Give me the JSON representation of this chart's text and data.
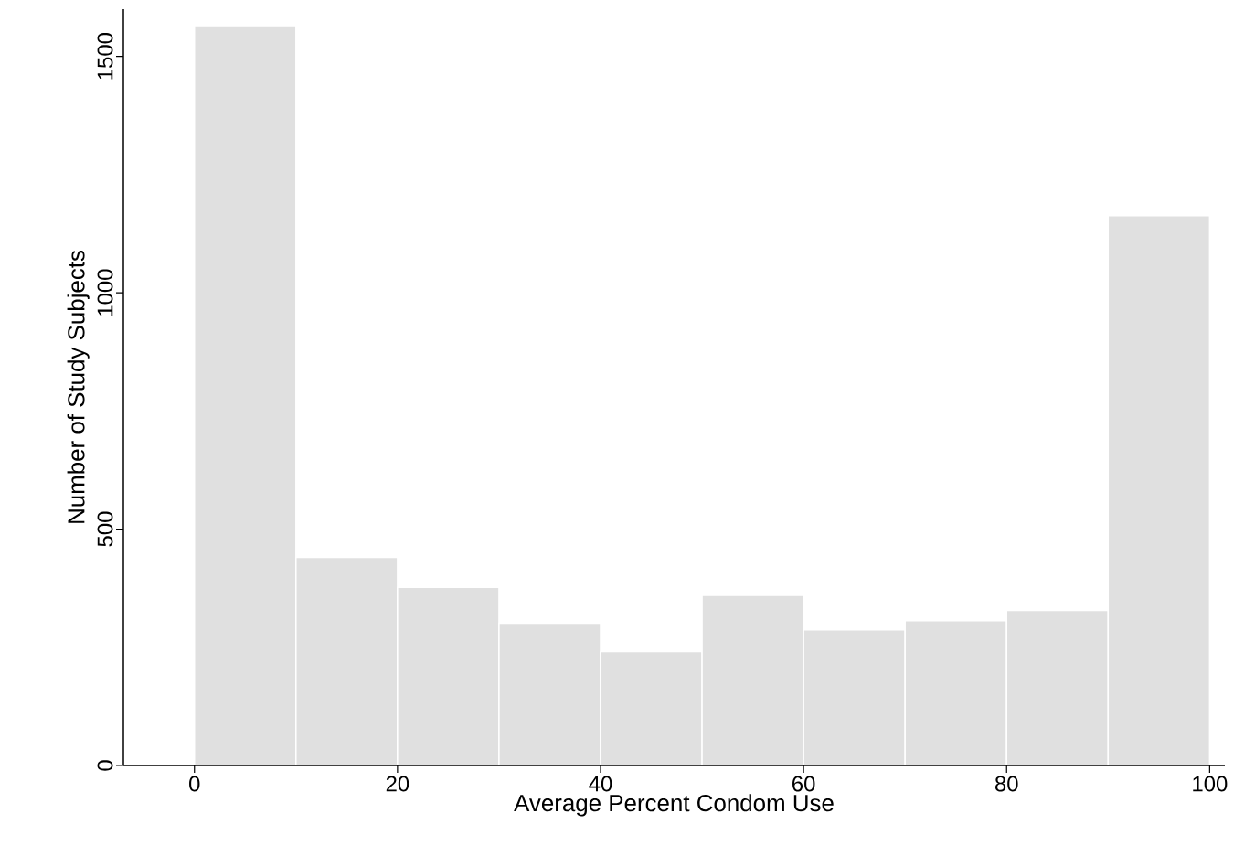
{
  "chart_data": {
    "type": "histogram",
    "xlabel": "Average Percent Condom Use",
    "ylabel": "Number of Study Subjects",
    "bins": [
      0,
      10,
      20,
      30,
      40,
      50,
      60,
      70,
      80,
      90,
      100
    ],
    "values": [
      1565,
      440,
      377,
      301,
      241,
      360,
      287,
      306,
      328,
      1163
    ],
    "color": "#e0e0e0",
    "xlim": [
      -7,
      101.5
    ],
    "ylim": [
      0,
      1600
    ],
    "xticks": [
      0,
      20,
      40,
      60,
      80,
      100
    ],
    "yticks": [
      0,
      500,
      1000,
      1500
    ],
    "grid": false
  }
}
